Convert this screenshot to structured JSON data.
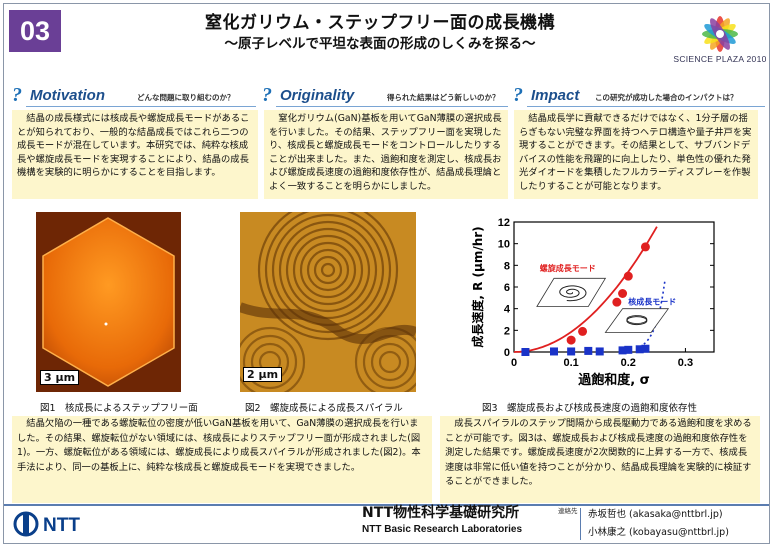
{
  "header": {
    "number": "03",
    "title": "窒化ガリウム・ステップフリー面の成長機構",
    "subtitle": "～原子レベルで平坦な表面の形成のしくみを探る～",
    "logo_text": "SCIENCE PLAZA 2010"
  },
  "sections": {
    "motivation": {
      "name": "Motivation",
      "sub": "どんな問題に取り組むのか？",
      "text": "結晶の成長様式には核成長や螺旋成長モードがあることが知られており、一般的な結晶成長ではこれら二つの成長モードが混在しています。本研究では、純粋な核成長や螺旋成長モードを実現することにより、結晶の成長機構を実験的に明らかにすることを目指します。"
    },
    "originality": {
      "name": "Originality",
      "sub": "得られた結果はどう新しいのか？",
      "text": "窒化ガリウム(GaN)基板を用いてGaN薄膜の選択成長を行いました。その結果、ステップフリー面を実現したり、核成長と螺旋成長モードをコントロールしたりすることが出来ました。また、過飽和度を測定し、核成長および螺旋成長速度の過飽和度依存性が、結晶成長理論とよく一致することを明らかにしました。"
    },
    "impact": {
      "name": "Impact",
      "sub": "この研究が成功した場合のインパクトは？",
      "text": "結晶成長学に貢献できるだけではなく、1分子層の揺らぎもない完璧な界面を持つヘテロ構造や量子井戸を実現することができます。その結果として、サブバンドデバイスの性能を飛躍的に向上したり、単色性の優れた発光ダイオードを集積したフルカラーディスプレーを作製したりすることが可能となります。"
    }
  },
  "figures": {
    "fig1": {
      "caption": "図1　核成長によるステップフリー面",
      "scale": "3 μm"
    },
    "fig2": {
      "caption": "図2　螺旋成長による成長スパイラル",
      "scale": "2 μm"
    },
    "fig3": {
      "caption": "図3　螺旋成長および核成長速度の過飽和度依存性"
    }
  },
  "chart_data": {
    "type": "scatter",
    "xlabel": "過飽和度, σ",
    "ylabel": "成長速度, R (μm/hr)",
    "xlim": [
      0,
      0.35
    ],
    "ylim": [
      0,
      12
    ],
    "xticks": [
      "0",
      "0.1",
      "0.2",
      "0.3"
    ],
    "yticks": [
      "0",
      "2",
      "4",
      "6",
      "8",
      "10",
      "12"
    ],
    "series": [
      {
        "name": "螺旋成長モード",
        "color": "#e02020",
        "marker": "circle",
        "x": [
          0.1,
          0.12,
          0.18,
          0.19,
          0.2,
          0.23
        ],
        "y": [
          1.1,
          1.9,
          4.6,
          5.4,
          7.0,
          9.7
        ]
      },
      {
        "name": "核成長モード",
        "color": "#1a33c8",
        "marker": "square",
        "x": [
          0.02,
          0.07,
          0.1,
          0.13,
          0.15,
          0.19,
          0.2,
          0.22,
          0.23
        ],
        "y": [
          0,
          0.05,
          0.05,
          0.1,
          0.05,
          0.15,
          0.2,
          0.25,
          0.3
        ]
      }
    ]
  },
  "bottom": {
    "left": "結晶欠陥の一種である螺旋転位の密度が低いGaN基板を用いて、GaN薄膜の選択成長を行いました。その結果、螺旋転位がない領域には、核成長によりステップフリー面が形成されました(図1)。一方、螺旋転位がある領域には、螺旋成長により成長スパイラルが形成されました(図2)。本手法により、同一の基板上に、純粋な核成長と螺旋成長モードを実現できました。",
    "right": "成長スパイラルのステップ間隔から成長駆動力である過飽和度を求めることが可能です。図3は、螺旋成長および核成長速度の過飽和度依存性を測定した結果です。螺旋成長速度が2次関数的に上昇する一方で、核成長速度は非常に低い値を持つことが分かり、結晶成長理論を実験的に検証することができました。"
  },
  "footer": {
    "company": "NTT",
    "lab_jp": "NTT物性科学基礎研究所",
    "lab_en": "NTT Basic Research Laboratories",
    "contact_label": "連絡先",
    "contact1": "赤坂哲也 (akasaka@nttbrl.jp)",
    "contact2": "小林康之 (kobayasu@nttbrl.jp)"
  }
}
